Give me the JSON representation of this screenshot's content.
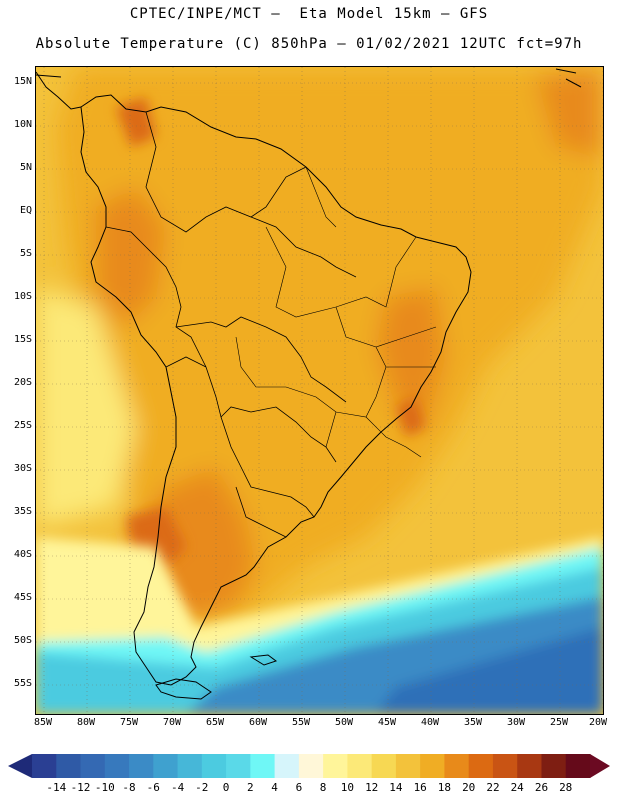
{
  "header": {
    "line1": "CPTEC/INPE/MCT –  Eta Model 15km – GFS",
    "line2": "Absolute Temperature (C) 850hPa – 01/02/2021 12UTC fct=97h"
  },
  "map": {
    "lat_labels": [
      "15N",
      "10N",
      "5N",
      "EQ",
      "5S",
      "10S",
      "15S",
      "20S",
      "25S",
      "30S",
      "35S",
      "40S",
      "45S",
      "50S",
      "55S"
    ],
    "lon_labels": [
      "85W",
      "80W",
      "75W",
      "70W",
      "65W",
      "60W",
      "55W",
      "50W",
      "45W",
      "40W",
      "35W",
      "30W",
      "25W",
      "20W"
    ],
    "gridlines": true,
    "projection": "lat-lon",
    "colors": {
      "ocean_land_mid": "#f5b52c",
      "warm_core": "#e88a1a",
      "hot_spot": "#dc6a12",
      "cool_band": "#5ad0e0",
      "cold_ocean": "#2f7bc0",
      "coastline": "#000000"
    }
  },
  "colorbar": {
    "labels": [
      "-14",
      "-12",
      "-10",
      "-8",
      "-6",
      "-4",
      "-2",
      "0",
      "2",
      "4",
      "6",
      "8",
      "10",
      "12",
      "14",
      "16",
      "18",
      "20",
      "22",
      "24",
      "26",
      "28"
    ],
    "colors": [
      "#2a3f93",
      "#2f5aa6",
      "#3469b3",
      "#3779bd",
      "#3b8bc6",
      "#3fa1cf",
      "#46b7d8",
      "#4ccbe0",
      "#5ad9e8",
      "#6ff7f6",
      "#d6f5fb",
      "#fff7d8",
      "#fff59a",
      "#fce978",
      "#f7d853",
      "#f3c23b",
      "#f0ad24",
      "#e88a1a",
      "#dc6a12",
      "#c95414",
      "#a83812",
      "#7e1e12",
      "#650a1a"
    ],
    "arrow_left_color": "#1e2a78",
    "arrow_right_color": "#6b0a22"
  }
}
